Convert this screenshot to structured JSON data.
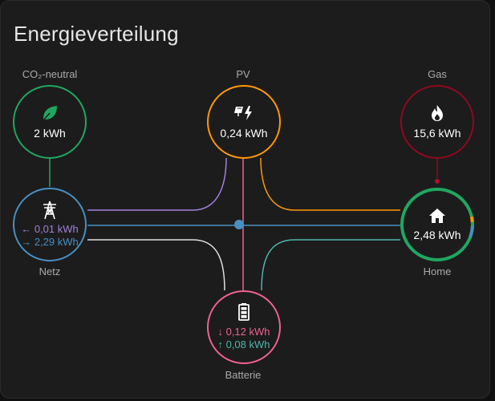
{
  "card": {
    "title": "Energieverteilung"
  },
  "nodes": {
    "co2": {
      "label": "CO₂-neutral",
      "value": "2 kWh",
      "icon": "leaf-icon",
      "color": "#1fa760"
    },
    "pv": {
      "label": "PV",
      "value": "0,24 kWh",
      "icon": "solar-power-icon",
      "color": "#ff9800"
    },
    "gas": {
      "label": "Gas",
      "value": "15,6 kWh",
      "icon": "fire-icon",
      "color": "#8e0a1e"
    },
    "grid": {
      "label": "Netz",
      "return_value": "0,01 kWh",
      "consumption_value": "2,29 kWh",
      "icon": "transmission-tower-icon",
      "color": "#488fc2",
      "return_color": "#a280db"
    },
    "home": {
      "label": "Home",
      "value": "2,48 kWh",
      "icon": "home-icon",
      "color": "#1fa760"
    },
    "battery": {
      "label": "Batterie",
      "in_value": "0,12 kWh",
      "out_value": "0,08 kWh",
      "icon": "battery-icon",
      "color": "#f06292",
      "out_color": "#4db6ac"
    }
  },
  "arrows": {
    "return": "←",
    "consumption": "→",
    "battery_in": "↓",
    "battery_out": "↑"
  }
}
